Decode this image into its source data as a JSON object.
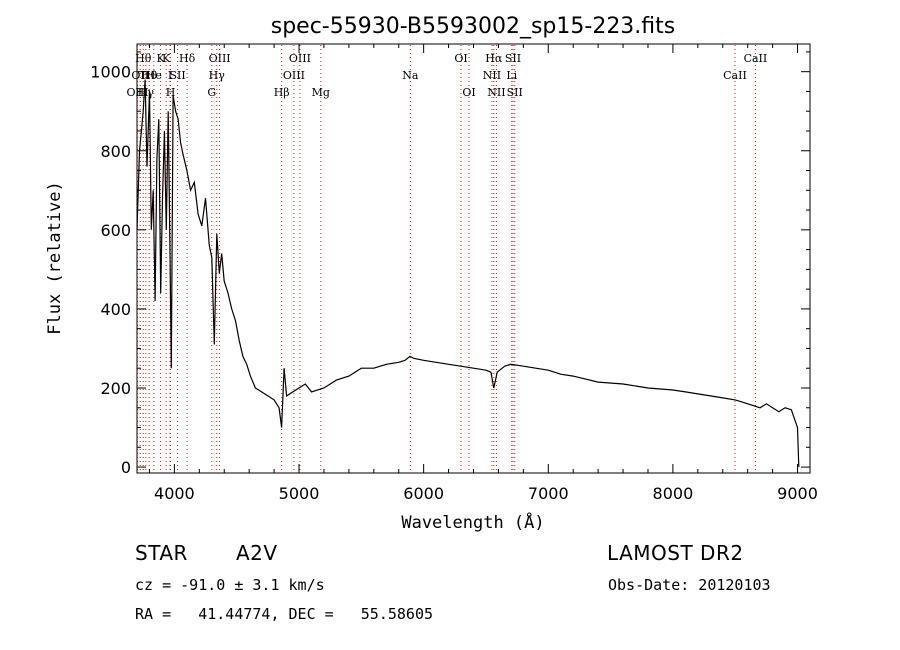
{
  "chart_data": {
    "type": "line",
    "title": "spec-55930-B5593002_sp15-223.fits",
    "xlabel": "Wavelength (Å)",
    "ylabel": "Flux (relative)",
    "xlim": [
      3700,
      9100
    ],
    "ylim": [
      -15,
      1070
    ],
    "xticks": [
      4000,
      5000,
      6000,
      7000,
      8000,
      9000
    ],
    "yticks": [
      0,
      200,
      400,
      600,
      800,
      1000
    ],
    "grid": false,
    "series": [
      {
        "x": [
          3700,
          3720,
          3735,
          3750,
          3765,
          3780,
          3800,
          3815,
          3830,
          3845,
          3860,
          3875,
          3890,
          3905,
          3920,
          3935,
          3950,
          3965,
          3975,
          3990,
          4010,
          4030,
          4050,
          4070,
          4100,
          4130,
          4160,
          4190,
          4220,
          4250,
          4280,
          4300,
          4320,
          4340,
          4360,
          4380,
          4400,
          4430,
          4460,
          4490,
          4520,
          4550,
          4580,
          4610,
          4650,
          4700,
          4750,
          4800,
          4840,
          4860,
          4880,
          4900,
          4950,
          5000,
          5050,
          5100,
          5200,
          5300,
          5400,
          5500,
          5600,
          5700,
          5800,
          5850,
          5890,
          5920,
          6000,
          6100,
          6200,
          6300,
          6400,
          6500,
          6540,
          6563,
          6590,
          6650,
          6700,
          6800,
          6900,
          7000,
          7100,
          7200,
          7400,
          7600,
          7800,
          8000,
          8100,
          8200,
          8300,
          8400,
          8500,
          8550,
          8600,
          8650,
          8700,
          8750,
          8800,
          8850,
          8900,
          8950,
          9000,
          9010
        ],
        "y": [
          600,
          800,
          850,
          900,
          980,
          760,
          950,
          600,
          700,
          420,
          780,
          880,
          440,
          680,
          850,
          600,
          900,
          540,
          250,
          940,
          900,
          880,
          820,
          790,
          750,
          700,
          720,
          640,
          610,
          680,
          560,
          530,
          310,
          590,
          490,
          540,
          470,
          440,
          400,
          370,
          320,
          280,
          260,
          230,
          200,
          190,
          180,
          170,
          150,
          100,
          250,
          180,
          190,
          200,
          210,
          190,
          200,
          220,
          230,
          250,
          250,
          260,
          265,
          270,
          280,
          275,
          270,
          265,
          260,
          255,
          250,
          245,
          240,
          200,
          240,
          255,
          260,
          255,
          250,
          245,
          235,
          230,
          215,
          210,
          200,
          195,
          190,
          185,
          180,
          175,
          170,
          165,
          160,
          155,
          150,
          160,
          150,
          140,
          150,
          145,
          100,
          0
        ]
      }
    ],
    "spectral_lines": [
      {
        "x": 3704,
        "label": "OIII",
        "row": 3
      },
      {
        "x": 3726,
        "label": "OII",
        "row": 2
      },
      {
        "x": 3750,
        "label": "Hθ",
        "row": 1
      },
      {
        "x": 3771,
        "label": "Hγ",
        "row": 3
      },
      {
        "x": 3798,
        "label": "Hθ",
        "row": 2
      },
      {
        "x": 3835,
        "label": "He",
        "row": 2
      },
      {
        "x": 3889,
        "label": "K",
        "row": 1
      },
      {
        "x": 3934,
        "label": "K",
        "row": 1
      },
      {
        "x": 3965,
        "label": "I",
        "row": 2
      },
      {
        "x": 3969,
        "label": "H",
        "row": 3
      },
      {
        "x": 4026,
        "label": "SII",
        "row": 2
      },
      {
        "x": 4102,
        "label": "Hδ",
        "row": 1
      },
      {
        "x": 4300,
        "label": "G",
        "row": 3
      },
      {
        "x": 4340,
        "label": "Hγ",
        "row": 2
      },
      {
        "x": 4363,
        "label": "OIII",
        "row": 1
      },
      {
        "x": 4861,
        "label": "Hβ",
        "row": 3
      },
      {
        "x": 4959,
        "label": "OIII",
        "row": 2
      },
      {
        "x": 5007,
        "label": "OIII",
        "row": 1
      },
      {
        "x": 5175,
        "label": "Mg",
        "row": 3
      },
      {
        "x": 5893,
        "label": "Na",
        "row": 2
      },
      {
        "x": 6300,
        "label": "OI",
        "row": 1
      },
      {
        "x": 6364,
        "label": "OI",
        "row": 3
      },
      {
        "x": 6548,
        "label": "NII",
        "row": 2
      },
      {
        "x": 6563,
        "label": "Hα",
        "row": 1
      },
      {
        "x": 6584,
        "label": "NII",
        "row": 3
      },
      {
        "x": 6707,
        "label": "Li",
        "row": 2
      },
      {
        "x": 6717,
        "label": "SII",
        "row": 1
      },
      {
        "x": 6731,
        "label": "SII",
        "row": 3
      },
      {
        "x": 8498,
        "label": "CaII",
        "row": 2
      },
      {
        "x": 8662,
        "label": "CaII",
        "row": 1
      }
    ],
    "line_color": "#000000",
    "marker_color": "#e01010"
  },
  "info": {
    "object_class": "STAR",
    "subclass": "A2V",
    "survey": "LAMOST DR2",
    "redshift": "cz = -91.0 ± 3.1 km/s",
    "obs_date": "Obs-Date: 20120103",
    "coords": "RA =   41.44774, DEC =   55.58605"
  }
}
